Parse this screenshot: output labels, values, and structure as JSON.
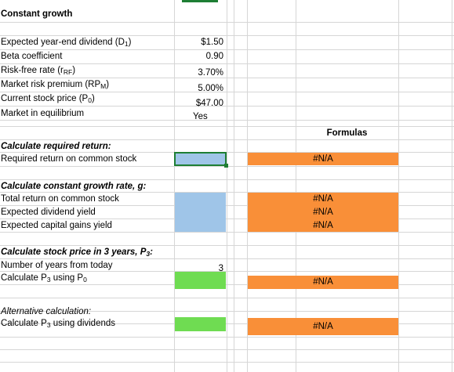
{
  "sheet_title": "Constant growth",
  "inputs": [
    {
      "label": "Expected year-end dividend (D",
      "sub": "1",
      "tail": ")",
      "value": "$1.50"
    },
    {
      "label": "Beta coefficient",
      "sub": "",
      "tail": "",
      "value": "0.90"
    },
    {
      "label": "Risk-free rate (r",
      "sub": "RF",
      "tail": ")",
      "value": "3.70%"
    },
    {
      "label": "Market risk premium (RP",
      "sub": "M",
      "tail": ")",
      "value": "5.00%"
    },
    {
      "label": "Current stock price (P",
      "sub": "0",
      "tail": ")",
      "value": "$47.00"
    },
    {
      "label": "Market in equilibrium",
      "sub": "",
      "tail": "",
      "value": "Yes"
    }
  ],
  "formulas_header": "Formulas",
  "section_required": {
    "heading": "Calculate required return:",
    "row_label": "Required return on common stock",
    "formula": "#N/A"
  },
  "section_growth": {
    "heading": "Calculate constant growth rate, g:",
    "rows": [
      {
        "label": "Total return on common stock",
        "formula": "#N/A"
      },
      {
        "label": "Expected dividend yield",
        "formula": "#N/A"
      },
      {
        "label": "Expected capital gains yield",
        "formula": "#N/A"
      }
    ]
  },
  "section_price": {
    "heading_main": "Calculate stock price in 3 years, P",
    "heading_sub": "3",
    "heading_tail": ":",
    "years_label": "Number of years from today",
    "years_value": "3",
    "p3_label_main": "Calculate P",
    "p3_label_sub": "3",
    "p3_label_mid": " using P",
    "p3_label_sub2": "0",
    "formula": "#N/A"
  },
  "section_alt": {
    "heading": "Alternative calculation:",
    "label_main": "Calculate P",
    "label_sub": "3",
    "label_tail": " using dividends",
    "formula": "#N/A"
  },
  "colors": {
    "input_fill": "#9fc5e8",
    "green_fill": "#6fdc52",
    "formula_fill": "#f98f38",
    "selection": "#1e7e34"
  }
}
